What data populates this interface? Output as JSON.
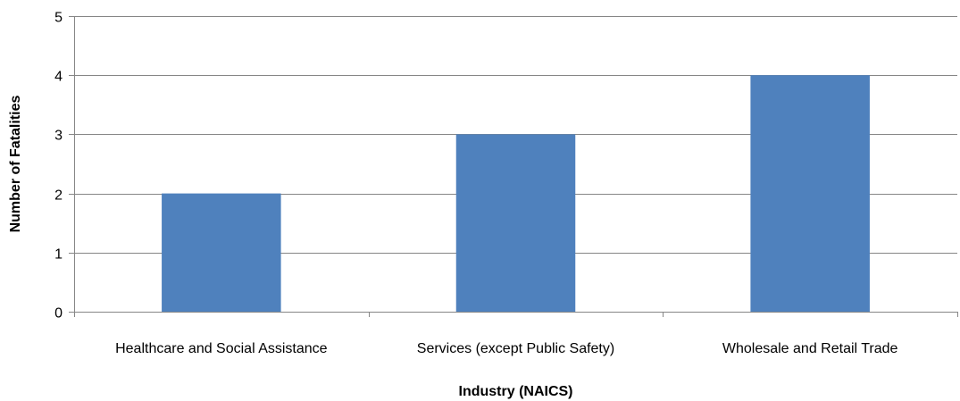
{
  "chart_data": {
    "type": "bar",
    "categories": [
      "Healthcare and Social Assistance",
      "Services (except Public Safety)",
      "Wholesale and Retail Trade"
    ],
    "values": [
      2,
      3,
      4
    ],
    "xlabel": "Industry (NAICS)",
    "ylabel": "Number of Fatalities",
    "ylim": [
      0,
      5
    ],
    "yticks": [
      0,
      1,
      2,
      3,
      4,
      5
    ],
    "grid": true,
    "legend": "none",
    "colors": {
      "bar": "#4f81bd",
      "grid": "#868686",
      "axis": "#868686"
    }
  }
}
